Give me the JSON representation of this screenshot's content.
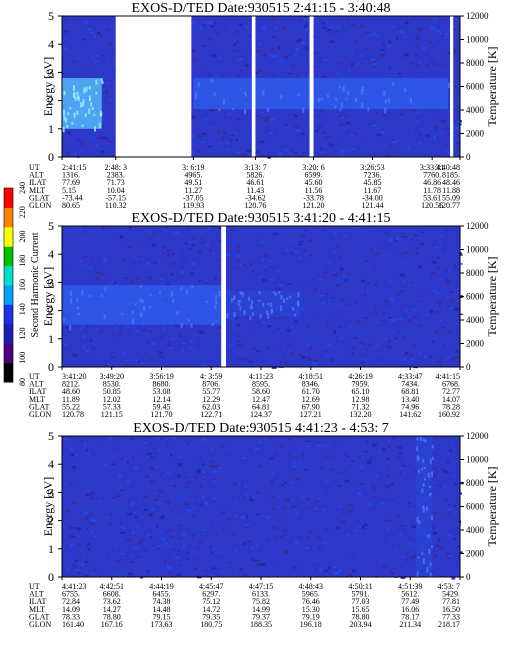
{
  "chart_data": [
    {
      "type": "heatmap",
      "title": "EXOS-D/TED   Date:930515  2:41:15 - 3:40:48",
      "ylabel": "Energy [eV]",
      "y2label": "Temperature [K]",
      "ylim": [
        0,
        5
      ],
      "y2lim": [
        0,
        12000
      ],
      "yticks": [
        "0",
        "1",
        "2",
        "3",
        "4",
        "5"
      ],
      "y2ticks": [
        "0",
        "2000",
        "4000",
        "6000",
        "8000",
        "10000",
        "12000"
      ],
      "columns": [
        "3:6:19",
        "3:13:7",
        "3:20:6",
        "3:26:53",
        "3:33:41"
      ],
      "gaps": [
        [
          0.135,
          0.325
        ],
        [
          0.477,
          0.486
        ],
        [
          0.622,
          0.632
        ],
        [
          0.975,
          0.983
        ]
      ],
      "enhancements": [
        {
          "x_from": 0.0,
          "x_to": 0.1,
          "y_from": 1.0,
          "y_to": 2.8,
          "level": "high"
        },
        {
          "x_from": 0.33,
          "x_to": 0.97,
          "y_from": 1.7,
          "y_to": 2.8,
          "level": "mid"
        }
      ],
      "table": {
        "row_labels": [
          "UT",
          "ALT",
          "ILAT",
          "MLT",
          "GLAT",
          "GLON"
        ],
        "columns": [
          [
            "2:41:15",
            "1316.",
            "77.69",
            "5.15",
            "-73.44",
            "80.65"
          ],
          [
            "2:48: 3",
            "2383.",
            "71.73",
            "10.04",
            "-57.15",
            "110.32"
          ],
          [
            "3: 6:19",
            "4965.",
            "49.51",
            "11.27",
            "-37.05",
            "119.93"
          ],
          [
            "3:13: 7",
            "5826.",
            "46.61",
            "11.43",
            "-34.62",
            "120.76"
          ],
          [
            "3:20: 6",
            "6599.",
            "45.60",
            "11.56",
            "-33.78",
            "121.20"
          ],
          [
            "3:26:53",
            "7236.",
            "45.85",
            "11.67",
            "-34.00",
            "121.44"
          ],
          [
            "3:33:41",
            "7760.",
            "46.86",
            "11.78",
            "53.61",
            "120.56"
          ],
          [
            "3:40:48",
            "8185.",
            "48.46",
            "11.88",
            "55.09",
            "120.77"
          ]
        ]
      }
    },
    {
      "type": "heatmap",
      "title": "EXOS-D/TED   Date:930515  3:41:20 - 4:41:15",
      "ylabel": "Energy [eV]",
      "y2label": "Temperature [K]",
      "ylim": [
        0,
        5
      ],
      "y2lim": [
        0,
        12000
      ],
      "yticks": [
        "0",
        "1",
        "2",
        "3",
        "4",
        "5"
      ],
      "y2ticks": [
        "0",
        "2000",
        "4000",
        "6000",
        "8000",
        "10000",
        "12000"
      ],
      "gaps": [
        [
          0.4,
          0.412
        ]
      ],
      "enhancements": [
        {
          "x_from": 0.0,
          "x_to": 0.4,
          "y_from": 1.5,
          "y_to": 2.9,
          "level": "mid"
        },
        {
          "x_from": 0.41,
          "x_to": 0.6,
          "y_from": 1.8,
          "y_to": 2.7,
          "level": "low"
        }
      ],
      "table": {
        "row_labels": [
          "UT",
          "ALT",
          "ILAT",
          "MLT",
          "GLAT",
          "GLON"
        ],
        "columns": [
          [
            "3:41:20",
            "8212.",
            "48.60",
            "11.89",
            "55.22",
            "120.78"
          ],
          [
            "3:49:20",
            "8530.",
            "50.85",
            "12.02",
            "57.33",
            "121.15"
          ],
          [
            "3:56:19",
            "8680.",
            "53.08",
            "12.14",
            "59.45",
            "121.70"
          ],
          [
            "4: 3:59",
            "8706.",
            "55.77",
            "12.29",
            "62.03",
            "122.71"
          ],
          [
            "4:11:23",
            "8595.",
            "58.60",
            "12.47",
            "64.81",
            "124.37"
          ],
          [
            "4:18:51",
            "8346.",
            "61.70",
            "12.69",
            "67.90",
            "127.21"
          ],
          [
            "4:26:19",
            "7959.",
            "65.10",
            "12.98",
            "71.32",
            "132.20"
          ],
          [
            "4:33:47",
            "7434.",
            "68.81",
            "13.40",
            "74.96",
            "141.62"
          ],
          [
            "4:41:15",
            "6768.",
            "72.77",
            "14.07",
            "78.28",
            "160.92"
          ]
        ]
      }
    },
    {
      "type": "heatmap",
      "title": "EXOS-D/TED   Date:930515  4:41:23 - 4:53: 7",
      "ylabel": "Energy [eV]",
      "y2label": "Temperature [K]",
      "ylim": [
        0,
        5
      ],
      "y2lim": [
        0,
        12000
      ],
      "yticks": [
        "0",
        "1",
        "2",
        "3",
        "4",
        "5"
      ],
      "y2ticks": [
        "0",
        "2000",
        "4000",
        "6000",
        "8000",
        "10000",
        "12000"
      ],
      "gaps": [],
      "enhancements": [
        {
          "x_from": 0.89,
          "x_to": 0.93,
          "y_from": 0.0,
          "y_to": 5.0,
          "level": "low"
        }
      ],
      "table": {
        "row_labels": [
          "UT",
          "ALT",
          "ILAT",
          "MLT",
          "GLAT",
          "GLON"
        ],
        "columns": [
          [
            "4:41:23",
            "6755.",
            "72.84",
            "14.09",
            "78.33",
            "161.40"
          ],
          [
            "4:42:51",
            "6608.",
            "73.62",
            "14.27",
            "78.80",
            "167.16"
          ],
          [
            "4:44:19",
            "6455.",
            "74.38",
            "14.48",
            "79.15",
            "173.63"
          ],
          [
            "4:45:47",
            "6297.",
            "75.12",
            "14.72",
            "79.35",
            "180.75"
          ],
          [
            "4:47:15",
            "6133.",
            "75.82",
            "14.99",
            "79.37",
            "188.35"
          ],
          [
            "4:48:43",
            "5965.",
            "76.46",
            "15.30",
            "79.19",
            "196.18"
          ],
          [
            "4:50:11",
            "5791.",
            "77.03",
            "15.65",
            "78.80",
            "203.94"
          ],
          [
            "4:51:39",
            "5612.",
            "77.49",
            "16.06",
            "78.17",
            "211.34"
          ],
          [
            "4:53: 7",
            "5429.",
            "77.81",
            "16.50",
            "77.33",
            "218.17"
          ]
        ]
      }
    }
  ],
  "colorbar": {
    "label": "Second Harmonic Current",
    "ticks": [
      "80",
      "100",
      "120",
      "140",
      "160",
      "180",
      "200",
      "220",
      "240"
    ],
    "range": [
      80,
      240
    ],
    "colors": [
      "#000000",
      "#4b0082",
      "#1e1eb4",
      "#2030e6",
      "#00a0ff",
      "#00e0c8",
      "#00c000",
      "#ffff00",
      "#ff8000",
      "#ff0000"
    ]
  }
}
